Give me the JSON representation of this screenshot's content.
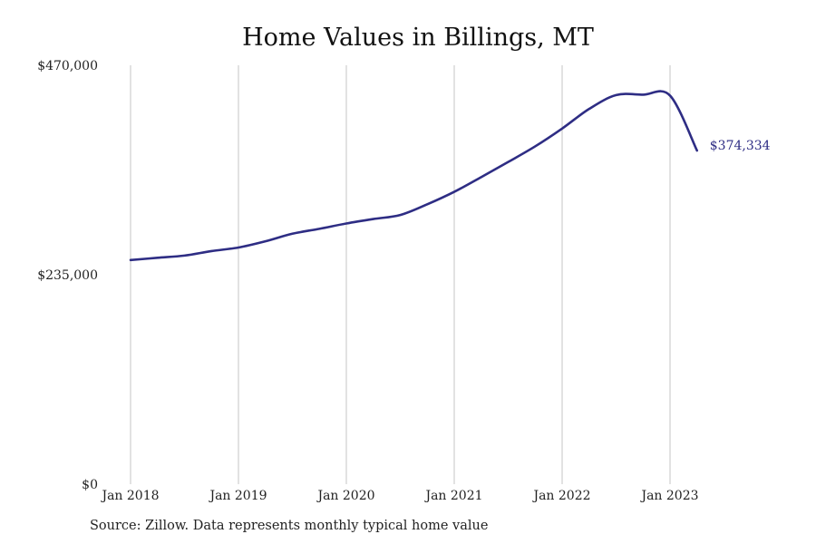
{
  "chart_data": {
    "type": "line",
    "title": "Home Values in Billings, MT",
    "xlabel": "",
    "ylabel": "",
    "ylim": [
      0,
      470000
    ],
    "xlim": [
      "2018-01",
      "2024-01"
    ],
    "y_ticks": [
      0,
      235000,
      470000
    ],
    "y_tick_labels": [
      "$0",
      "$235,000",
      "$470,000"
    ],
    "x_ticks": [
      "2018-01",
      "2019-01",
      "2020-01",
      "2021-01",
      "2022-01",
      "2023-01"
    ],
    "x_tick_labels": [
      "Jan 2018",
      "Jan 2019",
      "Jan 2020",
      "Jan 2021",
      "Jan 2022",
      "Jan 2023"
    ],
    "grid": {
      "vertical": true,
      "horizontal": false
    },
    "series": [
      {
        "color": "#2e2d84",
        "x": [
          "2018-01",
          "2018-04",
          "2018-07",
          "2018-10",
          "2019-01",
          "2019-04",
          "2019-07",
          "2019-10",
          "2020-01",
          "2020-04",
          "2020-07",
          "2020-10",
          "2021-01",
          "2021-04",
          "2021-07",
          "2021-10",
          "2022-01",
          "2022-04",
          "2022-07",
          "2022-10",
          "2023-01",
          "2023-04"
        ],
        "values": [
          251500,
          254000,
          256500,
          261500,
          265500,
          272500,
          281000,
          286500,
          292500,
          297500,
          302000,
          314000,
          328000,
          344500,
          361500,
          379000,
          399000,
          421000,
          436500,
          437000,
          436000,
          374334
        ],
        "end_label": "$374,334"
      }
    ]
  },
  "source": "Source: Zillow. Data represents monthly typical home value"
}
